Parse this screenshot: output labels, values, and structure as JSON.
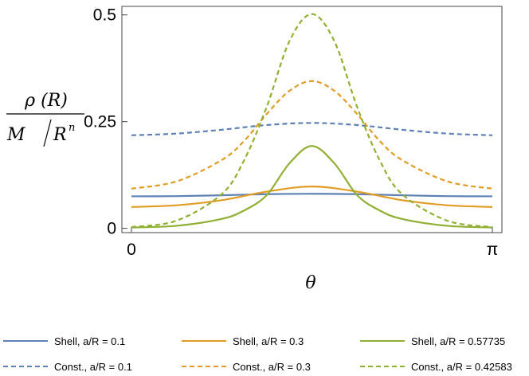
{
  "chart_data": {
    "type": "line",
    "xlabel": "θ",
    "ylabel": "ρ(R) / (M / Rⁿ)",
    "ylabel_parts": {
      "numerator": "ρ (R)",
      "denominator_m": "M",
      "denominator_r": "R",
      "exponent": "n"
    },
    "xlim": [
      0,
      3.14159
    ],
    "ylim": [
      -0.01,
      0.52
    ],
    "x_ticks": [
      {
        "value": 0,
        "label": "0"
      },
      {
        "value": 3.14159,
        "label": "π"
      }
    ],
    "y_ticks": [
      {
        "value": 0,
        "label": "0"
      },
      {
        "value": 0.25,
        "label": "0.25"
      },
      {
        "value": 0.5,
        "label": "0.5"
      }
    ],
    "grid": false,
    "legend_position": "bottom",
    "series": [
      {
        "name": "Shell,   a/R = 0.1",
        "color": "#5E81B5",
        "dash": "solid",
        "x": [
          0,
          0.3927,
          0.7854,
          1.1781,
          1.5708,
          1.9635,
          2.3562,
          2.7489,
          3.1416
        ],
        "values": [
          0.075,
          0.0755,
          0.0775,
          0.08,
          0.081,
          0.08,
          0.0775,
          0.0755,
          0.075
        ]
      },
      {
        "name": "Shell,   a/R = 0.3",
        "color": "#E19C24",
        "dash": "solid",
        "x": [
          0,
          0.3927,
          0.7854,
          1.1781,
          1.5708,
          1.9635,
          2.3562,
          2.7489,
          3.1416
        ],
        "values": [
          0.05,
          0.054,
          0.066,
          0.086,
          0.098,
          0.086,
          0.066,
          0.054,
          0.05
        ]
      },
      {
        "name": "Shell,   a/R = 0.57735",
        "color": "#8FB032",
        "dash": "solid",
        "x": [
          0,
          0.3927,
          0.7854,
          0.9817,
          1.1781,
          1.3744,
          1.5708,
          1.7671,
          1.9635,
          2.1598,
          2.3562,
          2.7489,
          3.1416
        ],
        "values": [
          0.002,
          0.006,
          0.022,
          0.042,
          0.078,
          0.152,
          0.193,
          0.152,
          0.078,
          0.042,
          0.022,
          0.006,
          0.002
        ]
      },
      {
        "name": "Const., a/R = 0.1",
        "color": "#5E81B5",
        "dash": "dashed",
        "x": [
          0,
          0.3927,
          0.7854,
          1.1781,
          1.5708,
          1.9635,
          2.3562,
          2.7489,
          3.1416
        ],
        "values": [
          0.218,
          0.222,
          0.231,
          0.242,
          0.247,
          0.242,
          0.231,
          0.222,
          0.218
        ]
      },
      {
        "name": "Const., a/R = 0.3",
        "color": "#E19C24",
        "dash": "dashed",
        "x": [
          0,
          0.3927,
          0.7854,
          0.9817,
          1.1781,
          1.3744,
          1.5708,
          1.7671,
          1.9635,
          2.1598,
          2.3562,
          2.7489,
          3.1416
        ],
        "values": [
          0.093,
          0.11,
          0.16,
          0.205,
          0.268,
          0.322,
          0.345,
          0.322,
          0.268,
          0.205,
          0.16,
          0.11,
          0.093
        ]
      },
      {
        "name": "Const., a/R = 0.42583",
        "color": "#8FB032",
        "dash": "dashed",
        "x": [
          0,
          0.3927,
          0.7854,
          0.9817,
          1.1781,
          1.3744,
          1.5708,
          1.7671,
          1.9635,
          2.1598,
          2.3562,
          2.7489,
          3.1416
        ],
        "values": [
          0.003,
          0.018,
          0.08,
          0.16,
          0.285,
          0.438,
          0.502,
          0.438,
          0.285,
          0.16,
          0.08,
          0.018,
          0.003
        ]
      }
    ]
  }
}
